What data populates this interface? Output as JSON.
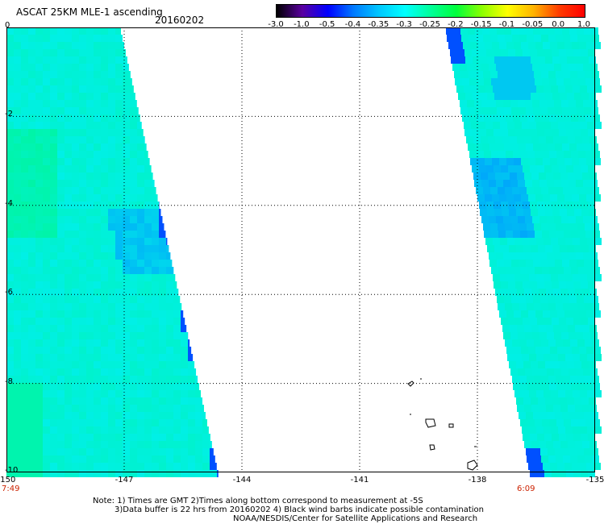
{
  "header": {
    "title": "ASCAT 25KM MLE-1 ascending",
    "date": "20160202"
  },
  "colorbar": {
    "labels": [
      "-3.0",
      "-1.0",
      "-0.5",
      "-0.4",
      "-0.35",
      "-0.3",
      "-0.25",
      "-0.2",
      "-0.15",
      "-0.1",
      "-0.05",
      "0.0",
      "1.0"
    ],
    "colors": [
      "#000000",
      "#5a00a0",
      "#0000ff",
      "#007aff",
      "#00c8ff",
      "#00ffff",
      "#00ff9a",
      "#00ff3c",
      "#8cff00",
      "#ffff00",
      "#ffb400",
      "#ff3c00",
      "#ff0000"
    ]
  },
  "map": {
    "lat_labels": [
      "0",
      "-2",
      "-4",
      "-6",
      "-8",
      "-10"
    ],
    "lon_labels": [
      "-150",
      "-147",
      "-144",
      "-141",
      "-138",
      "-135"
    ],
    "start_time": "7:49",
    "end_time": "6:09",
    "swath_colors": {
      "base": "#00f0e6",
      "green": "#00f5a0",
      "blue": "#0096ff",
      "deep": "#0050ff"
    }
  },
  "footer": {
    "line1": "Note: 1) Times are GMT 2)Times along bottom correspond to measurement at -5S",
    "line2": "3)Data buffer is 22 hrs from 20160202 4) Black wind barbs indicate possible contamination",
    "line3": "NOAA/NESDIS/Center for Satellite Applications and Research"
  }
}
